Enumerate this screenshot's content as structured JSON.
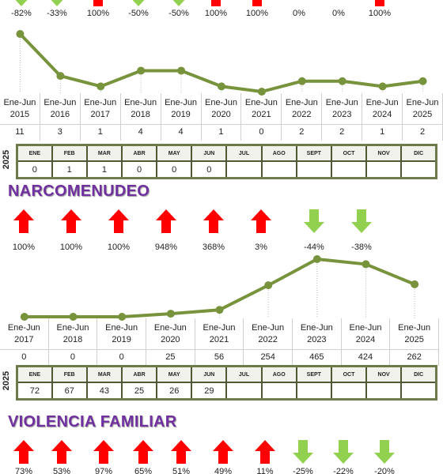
{
  "sections": [
    {
      "changes": [
        {
          "label": "-82%",
          "arrow": "down"
        },
        {
          "label": "-33%",
          "arrow": "down"
        },
        {
          "label": "100%",
          "arrow": "up"
        },
        {
          "label": "-50%",
          "arrow": "down"
        },
        {
          "label": "-50%",
          "arrow": "down"
        },
        {
          "label": "100%",
          "arrow": "up"
        },
        {
          "label": "100%",
          "arrow": "up"
        },
        {
          "label": "0%",
          "arrow": null
        },
        {
          "label": "0%",
          "arrow": null
        },
        {
          "label": "100%",
          "arrow": "up"
        }
      ],
      "line": {
        "categories": [
          "Ene-Jun 2015",
          "Ene-Jun 2016",
          "Ene-Jun 2017",
          "Ene-Jun 2018",
          "Ene-Jun 2019",
          "Ene-Jun 2020",
          "Ene-Jun 2021",
          "Ene-Jun 2022",
          "Ene-Jun 2023",
          "Ene-Jun 2024",
          "Ene-Jun 2025"
        ],
        "values": [
          11,
          3,
          1,
          4,
          4,
          1,
          0,
          2,
          2,
          1,
          2
        ],
        "color": "#77933c"
      },
      "monthly": {
        "year": "2025",
        "months": [
          "ENE",
          "FEB",
          "MAR",
          "ABR",
          "MAY",
          "JUN",
          "JUL",
          "AGO",
          "SEPT",
          "OCT",
          "NOV",
          "DIC"
        ],
        "values": [
          0,
          1,
          1,
          0,
          0,
          0,
          null,
          null,
          null,
          null,
          null,
          null
        ]
      }
    },
    {
      "title": "NARCOMENUDEO",
      "changes": [
        {
          "label": "100%",
          "arrow": "up"
        },
        {
          "label": "100%",
          "arrow": "up"
        },
        {
          "label": "100%",
          "arrow": "up"
        },
        {
          "label": "948%",
          "arrow": "up"
        },
        {
          "label": "368%",
          "arrow": "up"
        },
        {
          "label": "3%",
          "arrow": "up"
        },
        {
          "label": "-44%",
          "arrow": "down"
        },
        {
          "label": "-38%",
          "arrow": "down"
        }
      ],
      "line": {
        "categories": [
          "Ene-Jun 2017",
          "Ene-Jun 2018",
          "Ene-Jun 2019",
          "Ene-Jun 2020",
          "Ene-Jun 2021",
          "Ene-Jun 2022",
          "Ene-Jun 2023",
          "Ene-Jun 2024",
          "Ene-Jun 2025"
        ],
        "values": [
          0,
          0,
          0,
          25,
          56,
          254,
          465,
          424,
          262
        ],
        "color": "#77933c"
      },
      "monthly": {
        "year": "2025",
        "months": [
          "ENE",
          "FEB",
          "MAR",
          "ABR",
          "MAY",
          "JUN",
          "JUL",
          "AGO",
          "SEPT",
          "OCT",
          "NOV",
          "DIC"
        ],
        "values": [
          72,
          67,
          43,
          25,
          26,
          29,
          null,
          null,
          null,
          null,
          null,
          null
        ]
      }
    },
    {
      "title": "VIOLENCIA FAMILIAR",
      "changes": [
        {
          "label": "73%",
          "arrow": "up"
        },
        {
          "label": "53%",
          "arrow": "up"
        },
        {
          "label": "97%",
          "arrow": "up"
        },
        {
          "label": "65%",
          "arrow": "up"
        },
        {
          "label": "51%",
          "arrow": "up"
        },
        {
          "label": "49%",
          "arrow": "up"
        },
        {
          "label": "11%",
          "arrow": "up"
        },
        {
          "label": "-25%",
          "arrow": "down"
        },
        {
          "label": "-22%",
          "arrow": "down"
        },
        {
          "label": "-20%",
          "arrow": "down"
        }
      ]
    }
  ]
}
